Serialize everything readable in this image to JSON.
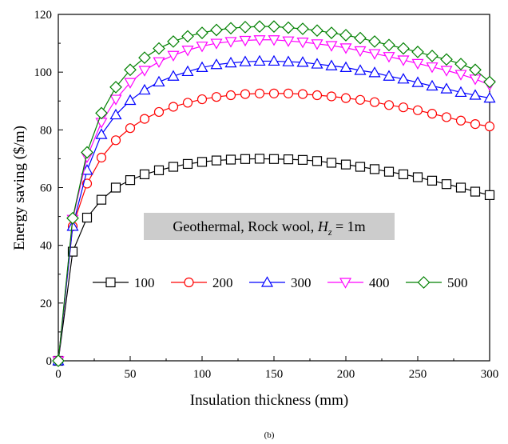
{
  "chart_data": {
    "type": "line",
    "xlabel": "Insulation thickness (mm)",
    "ylabel": "Energy saving ($/m)",
    "xlim": [
      0,
      300
    ],
    "ylim": [
      0,
      120
    ],
    "x_ticks": [
      0,
      50,
      100,
      150,
      200,
      250,
      300
    ],
    "y_ticks": [
      0,
      20,
      40,
      60,
      80,
      100,
      120
    ],
    "grid": false,
    "legend_position": "center",
    "annotation": {
      "text_main": "Geothermal, Rock wool,  ",
      "symbol": "H",
      "subscript": "z",
      "text_tail": " = 1m",
      "background": "#cccccc"
    },
    "caption": "(b)",
    "x": [
      0,
      10,
      20,
      30,
      40,
      50,
      60,
      70,
      80,
      90,
      100,
      110,
      120,
      130,
      140,
      150,
      160,
      170,
      180,
      190,
      200,
      210,
      220,
      230,
      240,
      250,
      260,
      270,
      280,
      290,
      300
    ],
    "series": [
      {
        "name": "100",
        "marker": "square",
        "color": "#000000",
        "values": [
          0,
          37.8,
          49.6,
          55.8,
          60.0,
          62.6,
          64.6,
          66.0,
          67.2,
          68.2,
          68.9,
          69.4,
          69.7,
          69.9,
          70.0,
          69.9,
          69.8,
          69.6,
          69.2,
          68.6,
          68.0,
          67.2,
          66.4,
          65.5,
          64.6,
          63.6,
          62.4,
          61.2,
          60.0,
          58.6,
          57.4
        ]
      },
      {
        "name": "200",
        "marker": "circle",
        "color": "#ff0000",
        "values": [
          0,
          46.6,
          61.4,
          70.4,
          76.4,
          80.6,
          83.8,
          86.2,
          88.0,
          89.4,
          90.6,
          91.4,
          92.0,
          92.4,
          92.6,
          92.6,
          92.6,
          92.4,
          92.0,
          91.6,
          91.0,
          90.4,
          89.6,
          88.6,
          87.8,
          86.8,
          85.6,
          84.4,
          83.2,
          82.0,
          81.2
        ]
      },
      {
        "name": "300",
        "marker": "triangle-up",
        "color": "#0000ff",
        "values": [
          0,
          46.6,
          66.0,
          78.4,
          85.2,
          90.2,
          93.8,
          96.6,
          98.6,
          100.2,
          101.6,
          102.6,
          103.2,
          103.6,
          103.8,
          103.8,
          103.6,
          103.4,
          102.8,
          102.2,
          101.6,
          100.6,
          99.8,
          98.6,
          97.6,
          96.4,
          95.2,
          94.2,
          93.0,
          92.0,
          91.0
        ]
      },
      {
        "name": "400",
        "marker": "triangle-down",
        "color": "#ff00ff",
        "values": [
          0,
          49.0,
          70.6,
          82.6,
          90.6,
          96.4,
          100.6,
          103.6,
          105.8,
          107.6,
          109.0,
          110.0,
          110.6,
          111.0,
          111.2,
          111.2,
          110.8,
          110.4,
          109.8,
          109.2,
          108.4,
          107.4,
          106.4,
          105.4,
          104.2,
          103.0,
          101.8,
          100.6,
          99.2,
          97.6,
          95.6
        ]
      },
      {
        "name": "500",
        "marker": "diamond",
        "color": "#008000",
        "values": [
          0,
          49.4,
          72.2,
          85.8,
          94.8,
          100.8,
          105.0,
          108.2,
          110.6,
          112.4,
          113.6,
          114.6,
          115.2,
          115.6,
          115.8,
          115.8,
          115.4,
          115.0,
          114.4,
          113.6,
          112.8,
          111.8,
          110.6,
          109.4,
          108.2,
          107.0,
          105.6,
          104.4,
          102.8,
          100.8,
          96.6
        ]
      }
    ]
  }
}
